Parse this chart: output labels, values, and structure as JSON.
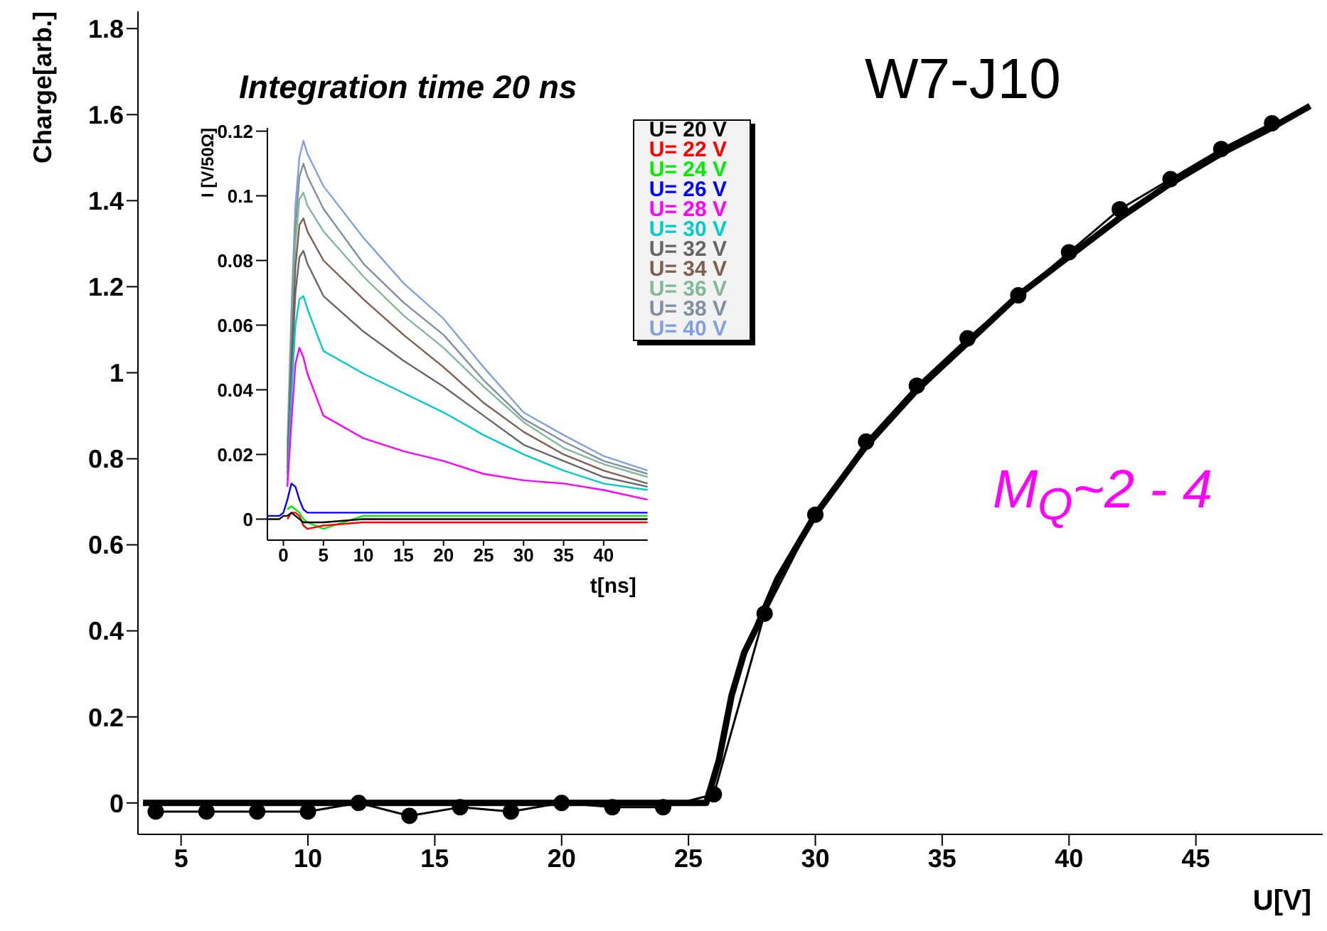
{
  "chart_data": [
    {
      "type": "line",
      "xlabel": "U[V]",
      "ylabel": "Charge[arb.]",
      "annotations": [
        "Integration time 20 ns",
        "W7-J10",
        "M$_{Q}$~2 - 4"
      ],
      "xlim": [
        3.3,
        50
      ],
      "ylim": [
        -0.073,
        1.84
      ],
      "xticks": [
        5,
        10,
        15,
        20,
        25,
        30,
        35,
        40,
        45
      ],
      "yticks": [
        0,
        0.2,
        0.4,
        0.6,
        0.8,
        1,
        1.2,
        1.4,
        1.6,
        1.8
      ],
      "legend": false,
      "series": [
        {
          "color": "#000000",
          "marker": "circle",
          "x": [
            4,
            6,
            8,
            10,
            12,
            14,
            16,
            18,
            20,
            22,
            24,
            26,
            28,
            30,
            32,
            34,
            36,
            38,
            40,
            42,
            44,
            46,
            48
          ],
          "values": [
            -0.02,
            -0.02,
            -0.02,
            -0.02,
            0,
            -0.03,
            -0.01,
            -0.02,
            0,
            -0.01,
            -0.01,
            0.02,
            0.44,
            0.67,
            0.84,
            0.97,
            1.08,
            1.18,
            1.28,
            1.38,
            1.45,
            1.52,
            1.58
          ]
        },
        {
          "color": "#000000",
          "marker": "none",
          "x": [
            3.5,
            25.7,
            26.2,
            26.7,
            27.2,
            27.7,
            28.5,
            30,
            32,
            34,
            36,
            38,
            40,
            42,
            44,
            46,
            48,
            49.5
          ],
          "values": [
            0,
            0,
            0.1,
            0.25,
            0.35,
            0.41,
            0.52,
            0.67,
            0.83,
            0.96,
            1.07,
            1.18,
            1.27,
            1.36,
            1.44,
            1.51,
            1.57,
            1.62
          ]
        }
      ]
    },
    {
      "type": "line",
      "xlabel": "t[ns]",
      "ylabel": "I [V/50Ω]",
      "xlim": [
        -2,
        45.5
      ],
      "ylim": [
        -0.0065,
        0.121
      ],
      "xticks": [
        0,
        5,
        10,
        15,
        20,
        25,
        30,
        35,
        40
      ],
      "yticks": [
        0,
        0.02,
        0.04,
        0.06,
        0.08,
        0.1,
        0.12
      ],
      "legend": "top right",
      "x": [
        -2,
        -0.5,
        0,
        0.5,
        1,
        1.5,
        2,
        2.5,
        3,
        5,
        10,
        15,
        20,
        25,
        30,
        35,
        40,
        45.5
      ],
      "series": [
        {
          "name": "U= 20 V",
          "color": "#000000",
          "values": [
            0,
            0,
            0.001,
            0.001,
            0.002,
            0.001,
            0,
            -0.001,
            -0.001,
            -0.001,
            0,
            0,
            0,
            0,
            0,
            0,
            0,
            0
          ]
        },
        {
          "name": "U= 22 V",
          "color": "#ff0000",
          "values": [
            null,
            null,
            null,
            0,
            0.002,
            0.002,
            0.001,
            -0.002,
            -0.003,
            -0.002,
            -0.001,
            -0.001,
            -0.001,
            -0.001,
            -0.001,
            -0.001,
            -0.001,
            -0.001
          ]
        },
        {
          "name": "U= 24 V",
          "color": "#00ee00",
          "values": [
            null,
            null,
            null,
            0.003,
            0.004,
            0.003,
            0.002,
            0,
            -0.001,
            -0.003,
            0.001,
            0.001,
            0.001,
            0.001,
            0.001,
            0.001,
            0.001,
            0.001
          ]
        },
        {
          "name": "U= 26 V",
          "color": "#0000ff",
          "values": [
            0.001,
            0.001,
            0.002,
            0.006,
            0.011,
            0.01,
            0.006,
            0.003,
            0.002,
            0.002,
            0.002,
            0.002,
            0.002,
            0.002,
            0.002,
            0.002,
            0.002,
            0.002
          ]
        },
        {
          "name": "U= 28 V",
          "color": "#ff00ff",
          "values": [
            null,
            null,
            null,
            0.01,
            0.03,
            0.048,
            0.053,
            0.05,
            0.045,
            0.032,
            0.025,
            0.021,
            0.018,
            0.014,
            0.012,
            0.011,
            0.009,
            0.006
          ]
        },
        {
          "name": "U= 30 V",
          "color": "#00cccc",
          "values": [
            null,
            null,
            null,
            0.012,
            0.038,
            0.06,
            0.068,
            0.069,
            0.065,
            0.052,
            0.045,
            0.039,
            0.033,
            0.026,
            0.02,
            0.015,
            0.011,
            0.009
          ]
        },
        {
          "name": "U= 32 V",
          "color": "#666666",
          "values": [
            null,
            null,
            null,
            0.014,
            0.045,
            0.07,
            0.081,
            0.083,
            0.079,
            0.069,
            0.058,
            0.049,
            0.041,
            0.032,
            0.023,
            0.018,
            0.013,
            0.01
          ]
        },
        {
          "name": "U= 34 V",
          "color": "#7f5f4f",
          "values": [
            null,
            null,
            null,
            0.016,
            0.05,
            0.078,
            0.091,
            0.093,
            0.089,
            0.08,
            0.068,
            0.057,
            0.047,
            0.036,
            0.027,
            0.02,
            0.015,
            0.011
          ]
        },
        {
          "name": "U= 36 V",
          "color": "#80b898",
          "values": [
            null,
            null,
            null,
            0.018,
            0.054,
            0.085,
            0.099,
            0.101,
            0.097,
            0.089,
            0.075,
            0.063,
            0.053,
            0.041,
            0.03,
            0.022,
            0.017,
            0.013
          ]
        },
        {
          "name": "U= 38 V",
          "color": "#7f8f9f",
          "values": [
            null,
            null,
            null,
            0.02,
            0.058,
            0.09,
            0.106,
            0.11,
            0.106,
            0.096,
            0.079,
            0.067,
            0.057,
            0.043,
            0.031,
            0.024,
            0.018,
            0.014
          ]
        },
        {
          "name": "U= 40 V",
          "color": "#80a0e0",
          "values": [
            null,
            null,
            null,
            0.023,
            0.065,
            0.097,
            0.112,
            0.117,
            0.113,
            0.103,
            0.087,
            0.073,
            0.062,
            0.047,
            0.033,
            0.026,
            0.0195,
            0.015
          ]
        }
      ]
    }
  ]
}
